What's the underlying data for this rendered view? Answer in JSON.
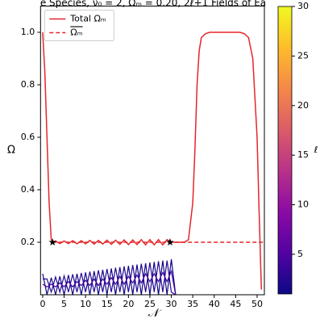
{
  "chart_data": {
    "type": "line",
    "title": "e Species, ν₀ = 2, Ωₘ = 0.20, 2ℓ+1 Fields of Ea",
    "xlabel": "𝒩",
    "ylabel": "Ω",
    "xlim": [
      -0.5,
      51.7
    ],
    "ylim": [
      0,
      1.1
    ],
    "xticks": [
      0,
      5,
      10,
      15,
      20,
      25,
      30,
      35,
      40,
      45,
      50
    ],
    "yticks": [
      0.2,
      0.4,
      0.6,
      0.8,
      {
        "value": 1,
        "label": "1.0"
      }
    ],
    "legend": "upper left",
    "series": [
      {
        "name": "Total Ωₘ",
        "color": "#e3262a",
        "dash": false,
        "x": [
          0,
          0.5,
          1,
          1.5,
          2,
          2.5,
          3,
          4,
          5,
          6,
          7,
          8,
          9,
          10,
          11,
          12,
          13,
          14,
          15,
          16,
          17,
          18,
          19,
          20,
          21,
          22,
          23,
          24,
          25,
          26,
          27,
          28,
          29,
          30,
          31,
          32,
          33,
          34,
          35,
          35.5,
          36,
          36.5,
          37,
          38,
          39,
          40,
          41,
          42,
          43,
          44,
          45,
          46,
          47,
          48,
          49,
          50,
          50.5,
          51
        ],
        "values": [
          1.0,
          0.85,
          0.6,
          0.35,
          0.21,
          0.2,
          0.205,
          0.195,
          0.205,
          0.195,
          0.206,
          0.194,
          0.206,
          0.194,
          0.207,
          0.193,
          0.207,
          0.193,
          0.208,
          0.192,
          0.208,
          0.192,
          0.209,
          0.191,
          0.209,
          0.191,
          0.21,
          0.19,
          0.21,
          0.19,
          0.21,
          0.19,
          0.21,
          0.2,
          0.2,
          0.2,
          0.2,
          0.21,
          0.35,
          0.55,
          0.8,
          0.93,
          0.98,
          0.995,
          1.0,
          1.0,
          1.0,
          1.0,
          1.0,
          1.0,
          1.0,
          1.0,
          0.995,
          0.98,
          0.9,
          0.6,
          0.3,
          0.02
        ]
      },
      {
        "name": "Ωₘ",
        "color": "#e3262a",
        "dash": true,
        "x": [
          2.3,
          51.7
        ],
        "values": [
          0.2,
          0.2
        ]
      }
    ],
    "markers": {
      "x": [
        2.3,
        29.7
      ],
      "values": [
        0.2,
        0.2
      ],
      "color": "#000000"
    },
    "fields": [
      {
        "ell": 1,
        "color": "#0d0887",
        "values": [
          0.08,
          0.0,
          0.065,
          0.0,
          0.07,
          0.0,
          0.075,
          0.0,
          0.08,
          0.0,
          0.085,
          0.0,
          0.09,
          0.0,
          0.095,
          0.0,
          0.1,
          0.0,
          0.105,
          0.0,
          0.11,
          0.0,
          0.115,
          0.0,
          0.12,
          0.0,
          0.125,
          0.0,
          0.13,
          0.0,
          0.135,
          0.0
        ]
      },
      {
        "ell": 2,
        "color": "#2a0593",
        "values": [
          0.06,
          0.06,
          0.01,
          0.068,
          0.01,
          0.072,
          0.01,
          0.078,
          0.01,
          0.083,
          0.01,
          0.088,
          0.01,
          0.093,
          0.01,
          0.098,
          0.01,
          0.103,
          0.01,
          0.108,
          0.01,
          0.113,
          0.01,
          0.118,
          0.01,
          0.123,
          0.01,
          0.128,
          0.01,
          0.13,
          0.01,
          0.0
        ]
      },
      {
        "ell": 3,
        "color": "#41049d",
        "values": [
          0.04,
          0.03,
          0.04,
          0.03,
          0.045,
          0.03,
          0.05,
          0.03,
          0.05,
          0.035,
          0.055,
          0.035,
          0.06,
          0.035,
          0.06,
          0.04,
          0.065,
          0.04,
          0.07,
          0.04,
          0.07,
          0.045,
          0.075,
          0.045,
          0.08,
          0.05,
          0.08,
          0.05,
          0.085,
          0.05,
          0.09,
          0.0
        ]
      }
    ],
    "fields_x": [
      0,
      1,
      2,
      3,
      4,
      5,
      6,
      7,
      8,
      9,
      10,
      11,
      12,
      13,
      14,
      15,
      16,
      17,
      18,
      19,
      20,
      21,
      22,
      23,
      24,
      25,
      26,
      27,
      28,
      29,
      30,
      31
    ],
    "colorbar": {
      "label": "ℓ",
      "clim": [
        1,
        30
      ],
      "ticks": [
        5,
        10,
        15,
        20,
        25,
        30
      ],
      "colormap": [
        "#0d0887",
        "#5302a3",
        "#8b0aa5",
        "#b83289",
        "#db5c68",
        "#f48849",
        "#febd2a",
        "#f0f921"
      ]
    }
  }
}
